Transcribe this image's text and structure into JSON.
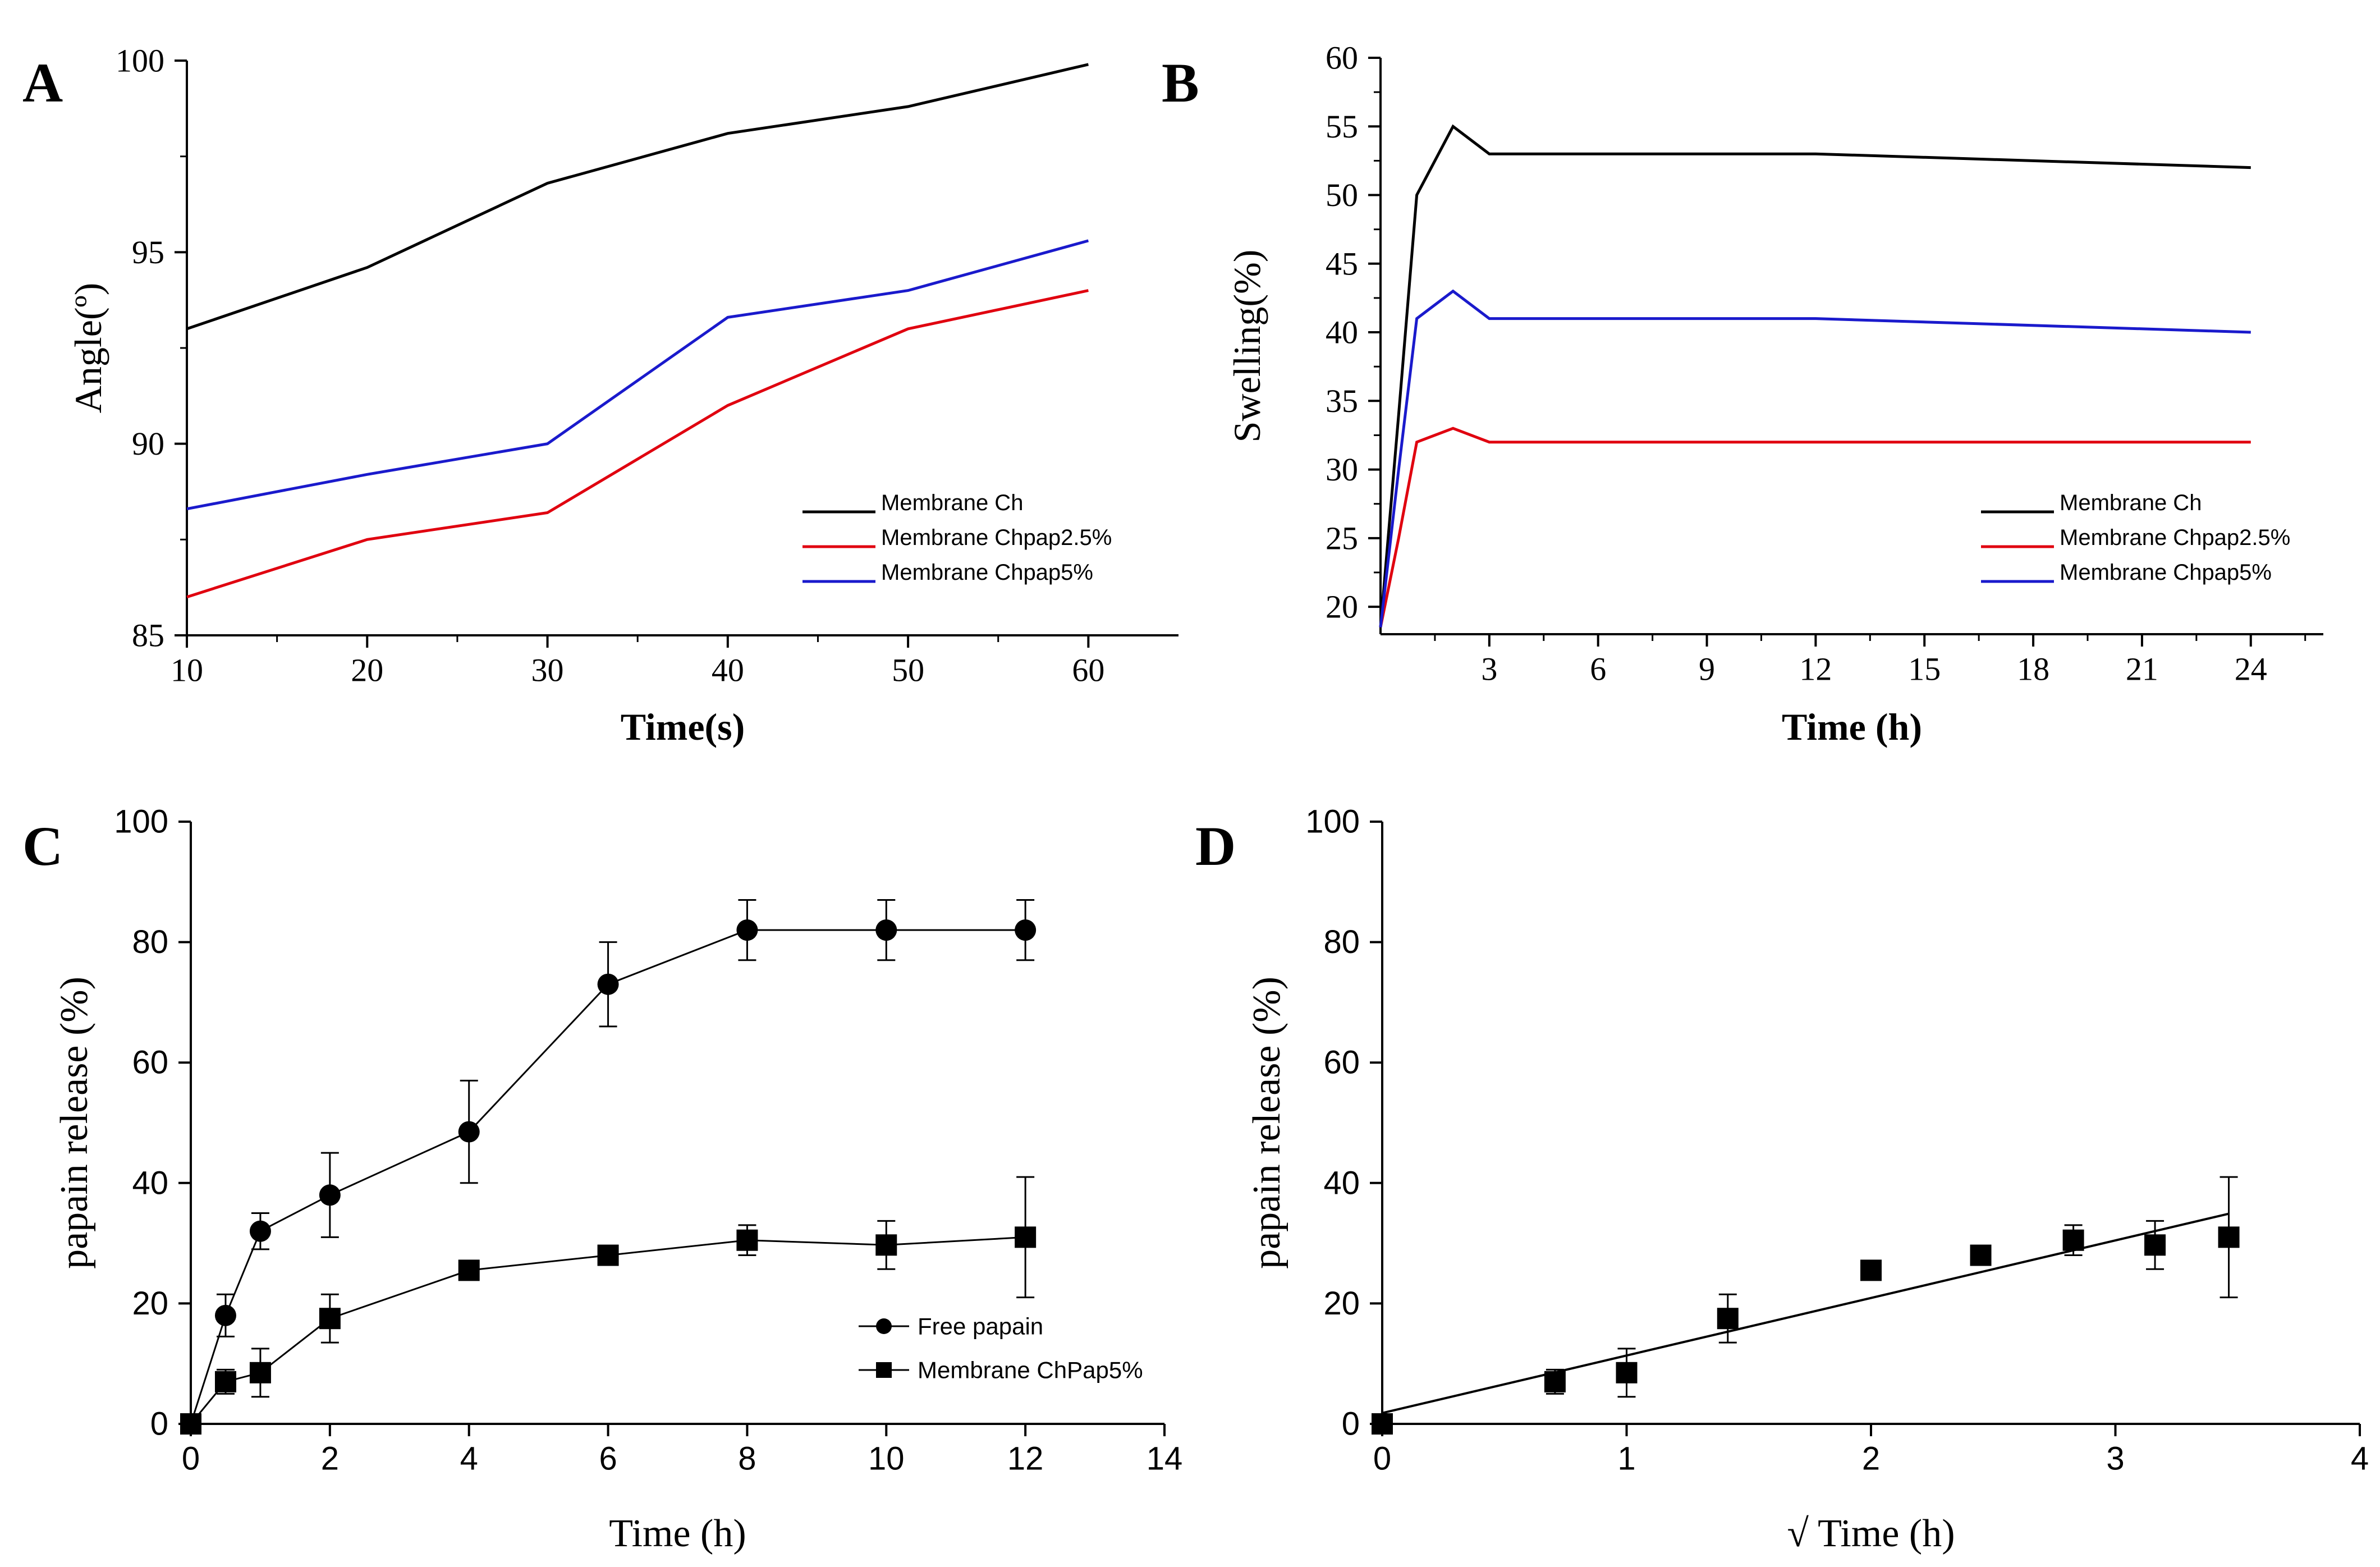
{
  "chart_data": [
    {
      "id": "A",
      "panel_label": "A",
      "type": "line",
      "title": "",
      "xlabel": "Time(s)",
      "ylabel": "Angle(º)",
      "xlim": [
        10,
        65
      ],
      "ylim": [
        85,
        100
      ],
      "x_ticks": [
        10,
        20,
        30,
        40,
        50,
        60
      ],
      "y_ticks": [
        85,
        90,
        95,
        100
      ],
      "x_tick_labels": [
        "10",
        "20",
        "30",
        "40",
        "50",
        "60"
      ],
      "y_tick_labels": [
        "85",
        "90",
        "95",
        "100"
      ],
      "legend_position": "bottom-right",
      "series": [
        {
          "name": "Membrane Ch",
          "color": "#000000",
          "x": [
            10,
            20,
            30,
            40,
            50,
            60
          ],
          "values": [
            93.0,
            94.6,
            96.8,
            98.1,
            98.8,
            99.9
          ]
        },
        {
          "name": "Membrane Chpap2.5%",
          "color": "#e0000f",
          "x": [
            10,
            20,
            30,
            40,
            50,
            60
          ],
          "values": [
            86.0,
            87.5,
            88.2,
            91.0,
            93.0,
            94.0
          ]
        },
        {
          "name": "Membrane Chpap5%",
          "color": "#1a1acc",
          "x": [
            10,
            20,
            30,
            40,
            50,
            60
          ],
          "values": [
            88.3,
            89.2,
            90.0,
            93.3,
            94.0,
            95.3
          ]
        }
      ]
    },
    {
      "id": "B",
      "panel_label": "B",
      "type": "line",
      "title": "",
      "xlabel": "Time (h)",
      "ylabel": "Swelling(%)",
      "xlim": [
        0,
        26
      ],
      "ylim": [
        18,
        60
      ],
      "x_ticks": [
        3,
        6,
        9,
        12,
        15,
        18,
        21,
        24
      ],
      "y_ticks": [
        20,
        25,
        30,
        35,
        40,
        45,
        50,
        55,
        60
      ],
      "x_tick_labels": [
        "3",
        "6",
        "9",
        "12",
        "15",
        "18",
        "21",
        "24"
      ],
      "y_tick_labels": [
        "20",
        "25",
        "30",
        "35",
        "40",
        "45",
        "50",
        "55",
        "60"
      ],
      "legend_position": "bottom-right",
      "series": [
        {
          "name": "Membrane Ch",
          "color": "#000000",
          "x": [
            0,
            0.5,
            1,
            2,
            3,
            12,
            24
          ],
          "values": [
            18.5,
            34,
            50,
            55,
            53,
            53,
            52
          ]
        },
        {
          "name": "Membrane Chpap2.5%",
          "color": "#e0000f",
          "x": [
            0,
            0.5,
            1,
            2,
            3,
            12,
            24
          ],
          "values": [
            18.5,
            25,
            32,
            33,
            32,
            32,
            32
          ]
        },
        {
          "name": "Membrane Chpap5%",
          "color": "#1a1acc",
          "x": [
            0,
            0.5,
            1,
            2,
            3,
            12,
            24
          ],
          "values": [
            18.5,
            30,
            41,
            43,
            41,
            41,
            40
          ]
        }
      ]
    },
    {
      "id": "C",
      "panel_label": "C",
      "type": "line",
      "title": "",
      "xlabel": "Time (h)",
      "ylabel": "papain release (%)",
      "xlim": [
        0,
        14
      ],
      "ylim": [
        0,
        100
      ],
      "x_ticks": [
        0,
        2,
        4,
        6,
        8,
        10,
        12,
        14
      ],
      "y_ticks": [
        0,
        20,
        40,
        60,
        80,
        100
      ],
      "x_tick_labels": [
        "0",
        "2",
        "4",
        "6",
        "8",
        "10",
        "12",
        "14"
      ],
      "y_tick_labels": [
        "0",
        "20",
        "40",
        "60",
        "80",
        "100"
      ],
      "legend_position": "bottom-right",
      "series": [
        {
          "name": "Free papain",
          "marker": "circle",
          "color": "#000000",
          "x": [
            0,
            0.5,
            1,
            2,
            4,
            6,
            8,
            10,
            12
          ],
          "values": [
            0,
            18,
            32,
            38,
            48.5,
            73,
            82,
            82,
            82
          ],
          "errors": [
            0,
            3.5,
            3,
            7,
            8.5,
            7,
            5,
            5,
            5
          ]
        },
        {
          "name": "Membrane ChPap5%",
          "marker": "square",
          "color": "#000000",
          "x": [
            0,
            0.5,
            1,
            2,
            4,
            6,
            8,
            10,
            12
          ],
          "values": [
            0,
            7,
            8.5,
            17.5,
            25.5,
            28,
            30.5,
            29.7,
            31
          ],
          "errors": [
            0,
            2,
            4,
            4,
            0,
            0,
            2.5,
            4,
            10
          ]
        }
      ]
    },
    {
      "id": "D",
      "panel_label": "D",
      "type": "scatter",
      "title": "",
      "xlabel": "√ Time (h)",
      "ylabel": "papain release (%)",
      "xlim": [
        0,
        4
      ],
      "ylim": [
        0,
        100
      ],
      "x_ticks": [
        0,
        1,
        2,
        3,
        4
      ],
      "y_ticks": [
        0,
        20,
        40,
        60,
        80,
        100
      ],
      "x_tick_labels": [
        "0",
        "1",
        "2",
        "3",
        "4"
      ],
      "y_tick_labels": [
        "0",
        "20",
        "40",
        "60",
        "80",
        "100"
      ],
      "series": [
        {
          "name": "Membrane ChPap5%",
          "marker": "square",
          "color": "#000000",
          "x": [
            0,
            0.707,
            1,
            1.414,
            2,
            2.449,
            2.828,
            3.162,
            3.464
          ],
          "values": [
            0,
            7,
            8.5,
            17.5,
            25.5,
            28,
            30.5,
            29.7,
            31
          ],
          "errors": [
            0,
            2,
            4,
            4,
            0,
            0,
            2.5,
            4,
            10
          ]
        }
      ],
      "fit_line": {
        "x": [
          0,
          3.464
        ],
        "y": [
          1.8,
          34.9
        ]
      }
    }
  ]
}
